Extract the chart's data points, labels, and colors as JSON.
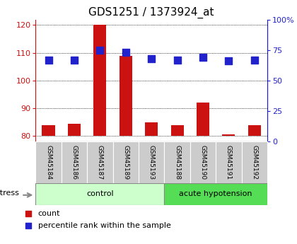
{
  "title": "GDS1251 / 1373924_at",
  "samples": [
    "GSM45184",
    "GSM45186",
    "GSM45187",
    "GSM45189",
    "GSM45193",
    "GSM45188",
    "GSM45190",
    "GSM45191",
    "GSM45192"
  ],
  "count_values": [
    84,
    84.5,
    120,
    109,
    85,
    84,
    92,
    80.5,
    84
  ],
  "percentile_values": [
    67,
    67,
    75,
    73,
    68,
    67,
    69,
    66,
    67
  ],
  "ylim_left": [
    78,
    122
  ],
  "ylim_right": [
    0,
    100
  ],
  "yticks_left": [
    80,
    90,
    100,
    110,
    120
  ],
  "yticks_right": [
    0,
    25,
    50,
    75,
    100
  ],
  "yticklabels_right": [
    "0",
    "25",
    "50",
    "75",
    "100%"
  ],
  "bar_color": "#cc1111",
  "dot_color": "#2222cc",
  "control_color": "#ccffcc",
  "acute_color": "#55dd55",
  "xticklabel_bg": "#cccccc",
  "stress_label": "stress",
  "group_labels": [
    "control",
    "acute hypotension"
  ],
  "control_count": 5,
  "acute_count": 4,
  "legend_count": "count",
  "legend_pct": "percentile rank within the sample",
  "bar_bottom": 80,
  "bar_width": 0.5,
  "dot_size": 45,
  "title_fontsize": 11,
  "tick_fontsize": 8,
  "sample_fontsize": 6.5
}
